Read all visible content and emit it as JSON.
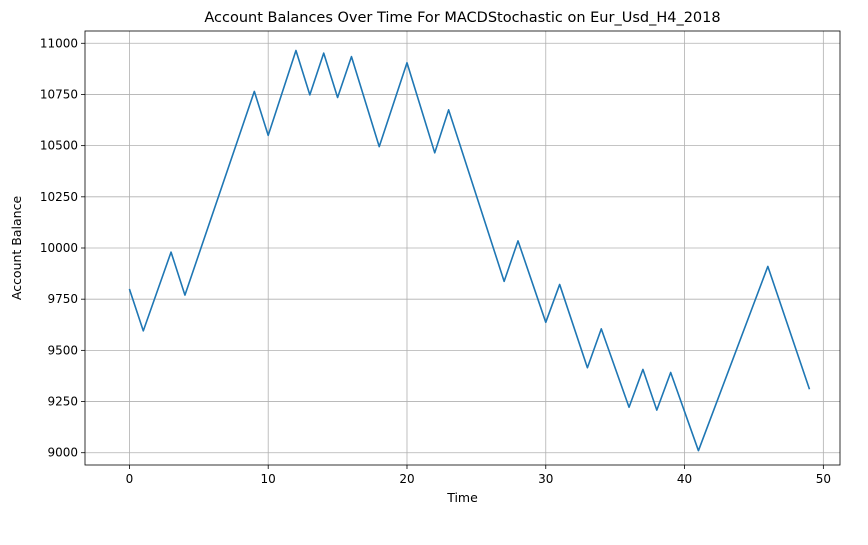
{
  "chart_data": {
    "type": "line",
    "title": "Account Balances Over Time For MACDStochastic on Eur_Usd_H4_2018",
    "xlabel": "Time",
    "ylabel": "Account Balance",
    "xlim": [
      -3.2,
      51.2
    ],
    "ylim": [
      8940,
      11060
    ],
    "xticks": [
      0,
      10,
      20,
      30,
      40,
      50
    ],
    "yticks": [
      9000,
      9250,
      9500,
      9750,
      10000,
      10250,
      10500,
      10750,
      11000
    ],
    "grid": true,
    "series": [
      {
        "color": "#1f77b4",
        "x": [
          0,
          1,
          3,
          4,
          9,
          10,
          12,
          13,
          14,
          15,
          16,
          18,
          20,
          22,
          23,
          27,
          28,
          30,
          31,
          33,
          34,
          36,
          37,
          38,
          39,
          41,
          46,
          49
        ],
        "y": [
          9800,
          9595,
          9980,
          9770,
          10765,
          10550,
          10965,
          10748,
          10952,
          10735,
          10935,
          10495,
          10905,
          10465,
          10675,
          9837,
          10035,
          9637,
          9822,
          9415,
          9605,
          9222,
          9407,
          9208,
          9392,
          9010,
          9910,
          9310
        ]
      }
    ]
  }
}
